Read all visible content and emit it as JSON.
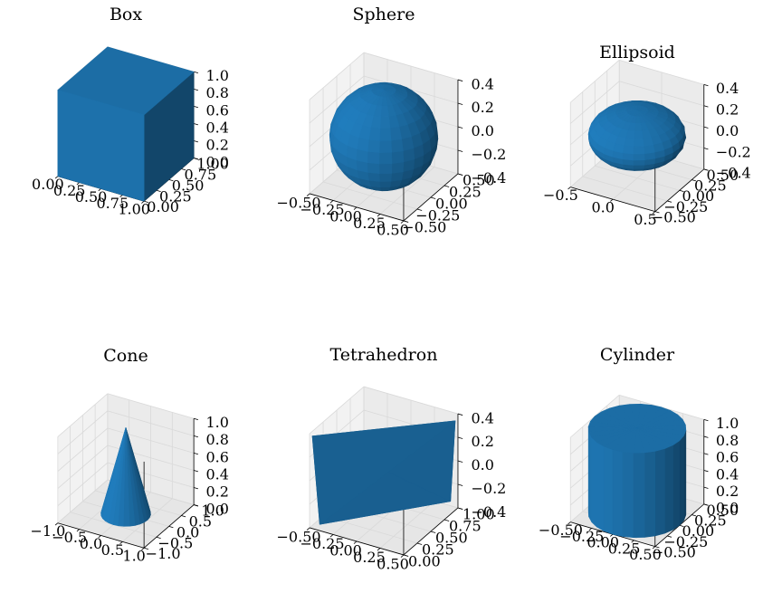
{
  "chart_data": [
    {
      "type": "surface3d",
      "title": "Box",
      "shape": "box",
      "xlim": [
        0,
        1
      ],
      "ylim": [
        0,
        1
      ],
      "zlim": [
        0,
        1
      ],
      "xticks": [
        "0.00",
        "0.25",
        "0.50",
        "0.75",
        "1.00"
      ],
      "yticks": [
        "0.00",
        "0.25",
        "0.50",
        "0.75",
        "1.00"
      ],
      "zticks": [
        "0.0",
        "0.2",
        "0.4",
        "0.6",
        "0.8",
        "1.0"
      ]
    },
    {
      "type": "surface3d",
      "title": "Sphere",
      "shape": "sphere",
      "xlim": [
        -0.5,
        0.5
      ],
      "ylim": [
        -0.5,
        0.5
      ],
      "zlim": [
        -0.5,
        0.5
      ],
      "xticks": [
        "−0.50",
        "−0.25",
        "0.00",
        "0.25",
        "0.50"
      ],
      "yticks": [
        "−0.50",
        "−0.25",
        "0.00",
        "0.25",
        "0.50"
      ],
      "zticks": [
        "−0.4",
        "−0.2",
        "0.0",
        "0.2",
        "0.4"
      ]
    },
    {
      "type": "surface3d",
      "title": "Ellipsoid",
      "shape": "ellipsoid",
      "xlim": [
        -0.75,
        0.75
      ],
      "ylim": [
        -0.5,
        0.5
      ],
      "zlim": [
        -0.5,
        0.5
      ],
      "xticks": [
        "−0.5",
        "0.0",
        "0.5"
      ],
      "yticks": [
        "−0.50",
        "−0.25",
        "0.00",
        "0.25",
        "0.50"
      ],
      "zticks": [
        "−0.4",
        "−0.2",
        "0.0",
        "0.2",
        "0.4"
      ]
    },
    {
      "type": "surface3d",
      "title": "Cone",
      "shape": "cone",
      "xlim": [
        -1,
        1
      ],
      "ylim": [
        -1,
        1
      ],
      "zlim": [
        0,
        1
      ],
      "xticks": [
        "−1.0",
        "−0.5",
        "0.0",
        "0.5",
        "1.0"
      ],
      "yticks": [
        "−1.0",
        "−0.5",
        "0.0",
        "0.5",
        "1.0"
      ],
      "zticks": [
        "0.0",
        "0.2",
        "0.4",
        "0.6",
        "0.8",
        "1.0"
      ]
    },
    {
      "type": "surface3d",
      "title": "Tetrahedron",
      "shape": "tetrahedron",
      "xlim": [
        -0.5,
        0.5
      ],
      "ylim": [
        0,
        1
      ],
      "zlim": [
        -0.5,
        0.5
      ],
      "xticks": [
        "−0.50",
        "−0.25",
        "0.00",
        "0.25",
        "0.50"
      ],
      "yticks": [
        "0.00",
        "0.25",
        "0.50",
        "0.75",
        "1.00"
      ],
      "zticks": [
        "−0.4",
        "−0.2",
        "0.0",
        "0.2",
        "0.4"
      ]
    },
    {
      "type": "surface3d",
      "title": "Cylinder",
      "shape": "cylinder",
      "xlim": [
        -0.5,
        0.5
      ],
      "ylim": [
        -0.5,
        0.5
      ],
      "zlim": [
        0,
        1
      ],
      "xticks": [
        "−0.50",
        "−0.25",
        "0.00",
        "0.25",
        "0.50"
      ],
      "yticks": [
        "−0.50",
        "−0.25",
        "0.00",
        "0.25",
        "0.50"
      ],
      "zticks": [
        "0.0",
        "0.2",
        "0.4",
        "0.6",
        "0.8",
        "1.0"
      ]
    }
  ],
  "colors": {
    "surface": "#1f77b4",
    "surface_light": "#2680c0",
    "surface_mid": "#1b669d",
    "surface_dark": "#154b72",
    "pane_light": "#f2f2f2",
    "pane_mid": "#ebebeb",
    "pane_dark": "#e6e6e6",
    "grid": "#d9d9d9",
    "axis": "#000000"
  }
}
